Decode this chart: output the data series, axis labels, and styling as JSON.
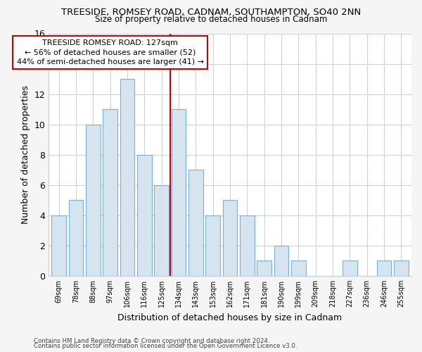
{
  "title1": "TREESIDE, ROMSEY ROAD, CADNAM, SOUTHAMPTON, SO40 2NN",
  "title2": "Size of property relative to detached houses in Cadnam",
  "xlabel": "Distribution of detached houses by size in Cadnam",
  "ylabel": "Number of detached properties",
  "categories": [
    "69sqm",
    "78sqm",
    "88sqm",
    "97sqm",
    "106sqm",
    "116sqm",
    "125sqm",
    "134sqm",
    "143sqm",
    "153sqm",
    "162sqm",
    "171sqm",
    "181sqm",
    "190sqm",
    "199sqm",
    "209sqm",
    "218sqm",
    "227sqm",
    "236sqm",
    "246sqm",
    "255sqm"
  ],
  "values": [
    4,
    5,
    10,
    11,
    13,
    8,
    6,
    11,
    7,
    4,
    5,
    4,
    1,
    2,
    1,
    0,
    0,
    1,
    0,
    1,
    1
  ],
  "bar_color": "#d6e4f0",
  "bar_edge_color": "#7ab0d4",
  "vline_x_index": 6,
  "vline_color": "#cc0000",
  "annotation_text": "TREESIDE ROMSEY ROAD: 127sqm\n← 56% of detached houses are smaller (52)\n44% of semi-detached houses are larger (41) →",
  "annotation_box_color": "#ffffff",
  "annotation_box_edge_color": "#cc0000",
  "ylim": [
    0,
    16
  ],
  "yticks": [
    0,
    2,
    4,
    6,
    8,
    10,
    12,
    14,
    16
  ],
  "footer1": "Contains HM Land Registry data © Crown copyright and database right 2024.",
  "footer2": "Contains public sector information licensed under the Open Government Licence v3.0.",
  "background_color": "#f5f5f5",
  "plot_background_color": "#ffffff",
  "grid_color": "#c8d0d8"
}
